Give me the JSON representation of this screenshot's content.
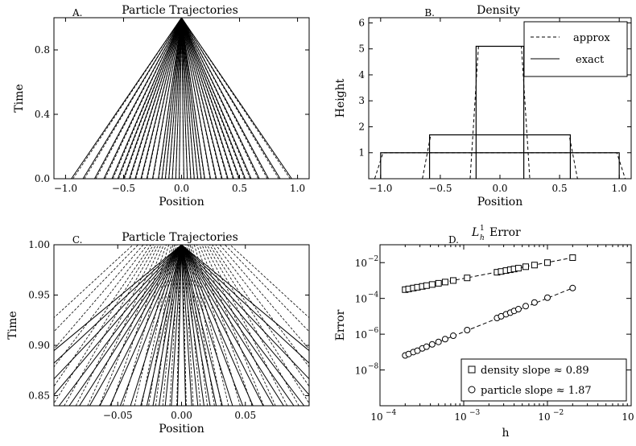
{
  "chart_data": [
    {
      "id": "A",
      "type": "line",
      "panel_letter": "A.",
      "title": "Particle Trajectories",
      "xlabel": "Position",
      "ylabel": "Time",
      "xlim": [
        -1.1,
        1.1
      ],
      "ylim": [
        0.0,
        1.0
      ],
      "xticks": [
        -1.0,
        -0.5,
        0.0,
        0.5,
        1.0
      ],
      "xtick_labels": [
        "−1.0",
        "−0.5",
        "0.0",
        "0.5",
        "1.0"
      ],
      "yticks": [
        0.0,
        0.4,
        0.8
      ],
      "ytick_labels": [
        "0.0",
        "0.4",
        "0.8"
      ],
      "particle_start_positions": [
        -0.95,
        -0.85,
        -0.75,
        -0.67,
        -0.6,
        -0.55,
        -0.5,
        -0.45,
        -0.4,
        -0.35,
        -0.3,
        -0.25,
        -0.2,
        -0.17,
        -0.14,
        -0.11,
        -0.08,
        -0.05,
        -0.02,
        0.02,
        0.05,
        0.08,
        0.11,
        0.14,
        0.17,
        0.2,
        0.25,
        0.3,
        0.35,
        0.4,
        0.45,
        0.5,
        0.55,
        0.6,
        0.67,
        0.75,
        0.85,
        0.95
      ],
      "converge_point": [
        0.0,
        1.0
      ],
      "series": [
        {
          "style": "solid"
        },
        {
          "style": "dashed"
        }
      ]
    },
    {
      "id": "B",
      "type": "line",
      "panel_letter": "B.",
      "title": "Density",
      "xlabel": "Position",
      "ylabel": "Height",
      "xlim": [
        -1.1,
        1.1
      ],
      "ylim": [
        0,
        6.2
      ],
      "xticks": [
        -1.0,
        -0.5,
        0.0,
        0.5,
        1.0
      ],
      "xtick_labels": [
        "−1.0",
        "−0.5",
        "0.0",
        "0.5",
        "1.0"
      ],
      "yticks": [
        1,
        2,
        3,
        4,
        5,
        6
      ],
      "ytick_labels": [
        "1",
        "2",
        "3",
        "4",
        "5",
        "6"
      ],
      "legend_position": "upper right",
      "series": [
        {
          "name": "approx",
          "style": "dashed",
          "x": [
            -1.05,
            -1.0,
            -0.97,
            -0.95,
            -0.6,
            -0.58,
            -0.56,
            -0.55,
            -0.2,
            -0.18,
            -0.17,
            -0.15,
            0.0,
            0.15,
            0.17,
            0.18,
            0.2,
            0.55,
            0.56,
            0.58,
            0.6,
            0.95,
            0.97,
            1.0,
            1.05
          ],
          "y": [
            0.0,
            0.0,
            1.0,
            1.0,
            1.0,
            1.7,
            1.7,
            1.7,
            1.7,
            5.15,
            5.2,
            5.15,
            5.1,
            5.15,
            5.2,
            5.15,
            1.7,
            1.7,
            1.7,
            1.7,
            1.0,
            1.0,
            1.0,
            0.0,
            0.0
          ]
        },
        {
          "name": "exact",
          "style": "solid",
          "x": [
            -1.0,
            -1.0,
            1.0,
            1.0
          ],
          "y": [
            0.0,
            1.0,
            1.0,
            0.0
          ],
          "x2": [
            -0.59,
            -0.59,
            0.59,
            0.59
          ],
          "y2": [
            0.0,
            1.69,
            1.69,
            0.0
          ],
          "x3": [
            -0.2,
            -0.2,
            0.2,
            0.2
          ],
          "y3": [
            0.0,
            5.1,
            5.1,
            0.0
          ]
        }
      ]
    },
    {
      "id": "C",
      "type": "line",
      "panel_letter": "C.",
      "title": "Particle Trajectories",
      "xlabel": "Position",
      "ylabel": "Time",
      "xlim": [
        -0.1,
        0.1
      ],
      "ylim": [
        0.84,
        1.0
      ],
      "xticks": [
        -0.05,
        0.0,
        0.05
      ],
      "xtick_labels": [
        "−0.05",
        "0.00",
        "0.05"
      ],
      "yticks": [
        0.85,
        0.9,
        0.95,
        1.0
      ],
      "ytick_labels": [
        "0.85",
        "0.90",
        "0.95",
        "1.00"
      ],
      "series": [
        {
          "style": "solid"
        },
        {
          "style": "dashed"
        }
      ]
    },
    {
      "id": "D",
      "type": "scatter",
      "panel_letter": "D.",
      "title": "L",
      "title_sup": "1",
      "title_sub": "h",
      "title_rest": "Error",
      "xlabel": "h",
      "ylabel": "Error",
      "xscale": "log",
      "yscale": "log",
      "xlim": [
        0.0001,
        0.1
      ],
      "ylim": [
        1e-10,
        0.1
      ],
      "xticks_exp": [
        -4,
        -3,
        -2,
        -1
      ],
      "yticks_exp": [
        -8,
        -6,
        -4,
        -2
      ],
      "tick_base": "10",
      "legend_position": "lower right",
      "series": [
        {
          "name": "density slope ≈ 0.89",
          "marker": "square",
          "x": [
            0.0002,
            0.00022,
            0.00025,
            0.00028,
            0.00032,
            0.00036,
            0.00042,
            0.0005,
            0.0006,
            0.00075,
            0.0011,
            0.0025,
            0.0028,
            0.0032,
            0.0036,
            0.004,
            0.0045,
            0.0055,
            0.007,
            0.01,
            0.02
          ],
          "y": [
            0.00031,
            0.00034,
            0.00038,
            0.00042,
            0.00047,
            0.00052,
            0.0006,
            0.0007,
            0.00082,
            0.001,
            0.0014,
            0.0029,
            0.0032,
            0.0036,
            0.004,
            0.0044,
            0.0049,
            0.0059,
            0.0073,
            0.01,
            0.019
          ]
        },
        {
          "name": "particle slope ≈ 1.87",
          "marker": "circle",
          "x": [
            0.0002,
            0.00022,
            0.00025,
            0.00028,
            0.00032,
            0.00036,
            0.00042,
            0.0005,
            0.0006,
            0.00075,
            0.0011,
            0.0025,
            0.0028,
            0.0032,
            0.0036,
            0.004,
            0.0045,
            0.0055,
            0.007,
            0.01,
            0.02
          ],
          "y": [
            6.5e-08,
            7.8e-08,
            1e-07,
            1.2e-07,
            1.6e-07,
            2e-07,
            2.7e-07,
            3.7e-07,
            5.3e-07,
            8.2e-07,
            1.7e-06,
            8e-06,
            1e-05,
            1.3e-05,
            1.6e-05,
            2e-05,
            2.5e-05,
            3.7e-05,
            5.9e-05,
            0.00011,
            0.00038
          ]
        }
      ]
    }
  ]
}
